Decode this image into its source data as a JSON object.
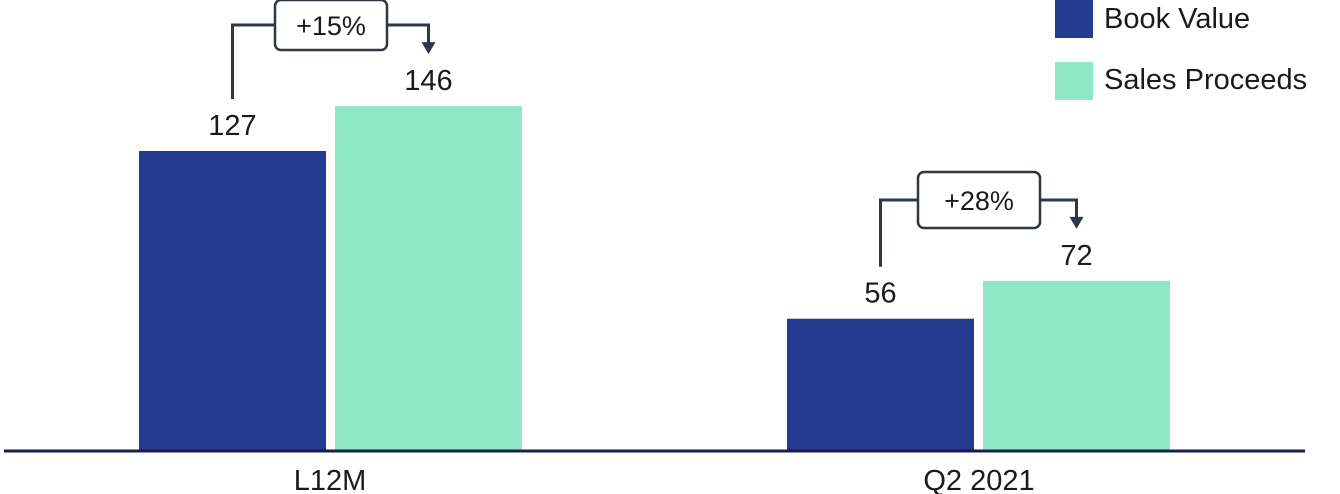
{
  "chart_data": {
    "type": "bar",
    "categories": [
      "L12M",
      "Q2 2021"
    ],
    "series": [
      {
        "name": "Book Value",
        "values": [
          127,
          56
        ],
        "color": "#223a8f"
      },
      {
        "name": "Sales Proceeds",
        "values": [
          146,
          72
        ],
        "color": "#8ee8c7"
      }
    ],
    "data_labels": [
      "127",
      "146",
      "56",
      "72"
    ],
    "annotations": [
      "+15%",
      "+28%"
    ],
    "legend_position": "top-right",
    "ylim": [
      0,
      190
    ],
    "grid": false,
    "axis_color": "#1b1e4a",
    "connector_color": "#2e3647"
  }
}
